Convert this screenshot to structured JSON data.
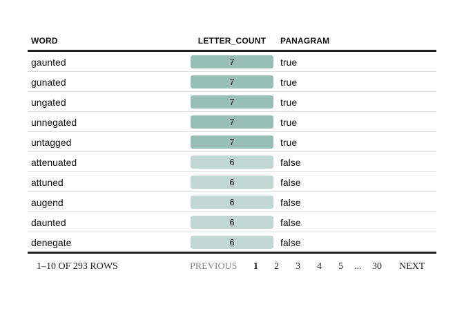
{
  "table": {
    "columns": {
      "word": "WORD",
      "letter_count": "LETTER_COUNT",
      "panagram": "PANAGRAM"
    },
    "rows": [
      {
        "word": "gaunted",
        "letter_count": "7",
        "panagram": "true"
      },
      {
        "word": "gunated",
        "letter_count": "7",
        "panagram": "true"
      },
      {
        "word": "ungated",
        "letter_count": "7",
        "panagram": "true"
      },
      {
        "word": "unnegated",
        "letter_count": "7",
        "panagram": "true"
      },
      {
        "word": "untagged",
        "letter_count": "7",
        "panagram": "true"
      },
      {
        "word": "attenuated",
        "letter_count": "6",
        "panagram": "false"
      },
      {
        "word": "attuned",
        "letter_count": "6",
        "panagram": "false"
      },
      {
        "word": "augend",
        "letter_count": "6",
        "panagram": "false"
      },
      {
        "word": "daunted",
        "letter_count": "6",
        "panagram": "false"
      },
      {
        "word": "denegate",
        "letter_count": "6",
        "panagram": "false"
      }
    ],
    "bar_colors": {
      "7": "#98bfb4",
      "6": "#c1d7d1"
    }
  },
  "footer": {
    "row_count": "1–10 OF 293 ROWS",
    "previous": "PREVIOUS",
    "pages": [
      "1",
      "2",
      "3",
      "4",
      "5"
    ],
    "ellipsis": "...",
    "last_page": "30",
    "next": "NEXT",
    "current_page": "1"
  }
}
